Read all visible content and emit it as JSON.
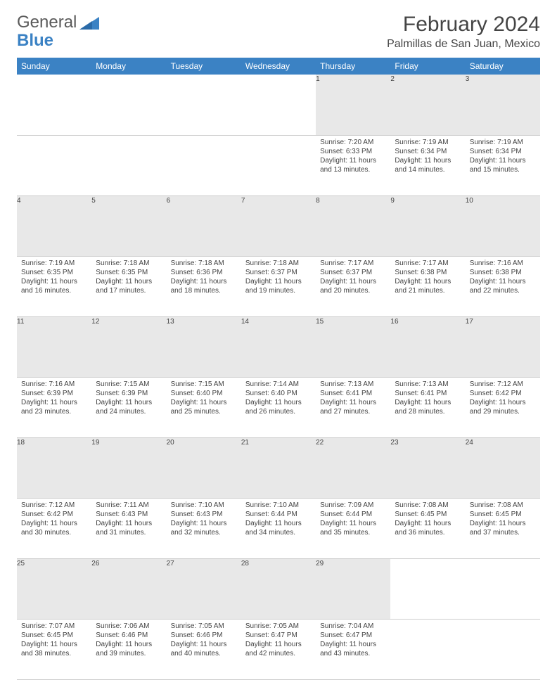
{
  "logo": {
    "text1": "General",
    "text2": "Blue"
  },
  "title": "February 2024",
  "location": "Palmillas de San Juan, Mexico",
  "colors": {
    "header_bg": "#3b82c4",
    "header_text": "#ffffff",
    "daynum_bg": "#e8e8e8",
    "body_text": "#444444",
    "logo_gray": "#5a5a5a",
    "logo_blue": "#3b82c4",
    "border": "#cccccc"
  },
  "typography": {
    "title_fontsize": 30,
    "location_fontsize": 16,
    "dayheader_fontsize": 12,
    "cell_fontsize": 10,
    "daynum_fontsize": 11
  },
  "day_headers": [
    "Sunday",
    "Monday",
    "Tuesday",
    "Wednesday",
    "Thursday",
    "Friday",
    "Saturday"
  ],
  "weeks": [
    [
      null,
      null,
      null,
      null,
      {
        "n": "1",
        "sr": "7:20 AM",
        "ss": "6:33 PM",
        "dl": "11 hours and 13 minutes."
      },
      {
        "n": "2",
        "sr": "7:19 AM",
        "ss": "6:34 PM",
        "dl": "11 hours and 14 minutes."
      },
      {
        "n": "3",
        "sr": "7:19 AM",
        "ss": "6:34 PM",
        "dl": "11 hours and 15 minutes."
      }
    ],
    [
      {
        "n": "4",
        "sr": "7:19 AM",
        "ss": "6:35 PM",
        "dl": "11 hours and 16 minutes."
      },
      {
        "n": "5",
        "sr": "7:18 AM",
        "ss": "6:35 PM",
        "dl": "11 hours and 17 minutes."
      },
      {
        "n": "6",
        "sr": "7:18 AM",
        "ss": "6:36 PM",
        "dl": "11 hours and 18 minutes."
      },
      {
        "n": "7",
        "sr": "7:18 AM",
        "ss": "6:37 PM",
        "dl": "11 hours and 19 minutes."
      },
      {
        "n": "8",
        "sr": "7:17 AM",
        "ss": "6:37 PM",
        "dl": "11 hours and 20 minutes."
      },
      {
        "n": "9",
        "sr": "7:17 AM",
        "ss": "6:38 PM",
        "dl": "11 hours and 21 minutes."
      },
      {
        "n": "10",
        "sr": "7:16 AM",
        "ss": "6:38 PM",
        "dl": "11 hours and 22 minutes."
      }
    ],
    [
      {
        "n": "11",
        "sr": "7:16 AM",
        "ss": "6:39 PM",
        "dl": "11 hours and 23 minutes."
      },
      {
        "n": "12",
        "sr": "7:15 AM",
        "ss": "6:39 PM",
        "dl": "11 hours and 24 minutes."
      },
      {
        "n": "13",
        "sr": "7:15 AM",
        "ss": "6:40 PM",
        "dl": "11 hours and 25 minutes."
      },
      {
        "n": "14",
        "sr": "7:14 AM",
        "ss": "6:40 PM",
        "dl": "11 hours and 26 minutes."
      },
      {
        "n": "15",
        "sr": "7:13 AM",
        "ss": "6:41 PM",
        "dl": "11 hours and 27 minutes."
      },
      {
        "n": "16",
        "sr": "7:13 AM",
        "ss": "6:41 PM",
        "dl": "11 hours and 28 minutes."
      },
      {
        "n": "17",
        "sr": "7:12 AM",
        "ss": "6:42 PM",
        "dl": "11 hours and 29 minutes."
      }
    ],
    [
      {
        "n": "18",
        "sr": "7:12 AM",
        "ss": "6:42 PM",
        "dl": "11 hours and 30 minutes."
      },
      {
        "n": "19",
        "sr": "7:11 AM",
        "ss": "6:43 PM",
        "dl": "11 hours and 31 minutes."
      },
      {
        "n": "20",
        "sr": "7:10 AM",
        "ss": "6:43 PM",
        "dl": "11 hours and 32 minutes."
      },
      {
        "n": "21",
        "sr": "7:10 AM",
        "ss": "6:44 PM",
        "dl": "11 hours and 34 minutes."
      },
      {
        "n": "22",
        "sr": "7:09 AM",
        "ss": "6:44 PM",
        "dl": "11 hours and 35 minutes."
      },
      {
        "n": "23",
        "sr": "7:08 AM",
        "ss": "6:45 PM",
        "dl": "11 hours and 36 minutes."
      },
      {
        "n": "24",
        "sr": "7:08 AM",
        "ss": "6:45 PM",
        "dl": "11 hours and 37 minutes."
      }
    ],
    [
      {
        "n": "25",
        "sr": "7:07 AM",
        "ss": "6:45 PM",
        "dl": "11 hours and 38 minutes."
      },
      {
        "n": "26",
        "sr": "7:06 AM",
        "ss": "6:46 PM",
        "dl": "11 hours and 39 minutes."
      },
      {
        "n": "27",
        "sr": "7:05 AM",
        "ss": "6:46 PM",
        "dl": "11 hours and 40 minutes."
      },
      {
        "n": "28",
        "sr": "7:05 AM",
        "ss": "6:47 PM",
        "dl": "11 hours and 42 minutes."
      },
      {
        "n": "29",
        "sr": "7:04 AM",
        "ss": "6:47 PM",
        "dl": "11 hours and 43 minutes."
      },
      null,
      null
    ]
  ],
  "labels": {
    "sunrise": "Sunrise:",
    "sunset": "Sunset:",
    "daylight": "Daylight:"
  }
}
